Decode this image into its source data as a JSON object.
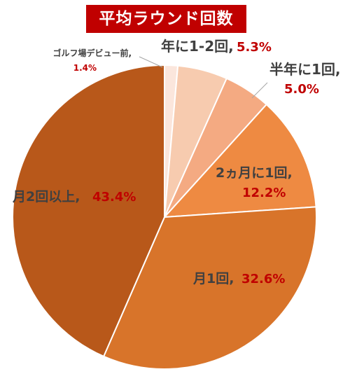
{
  "colors": {
    "title_bg": "#c00000",
    "title_text": "#ffffff",
    "label_text": "#404040",
    "percent_text": "#c00000",
    "leader_line": "#a6a6a6"
  },
  "chart_data": {
    "type": "pie",
    "title": "平均ラウンド回数",
    "start_angle_deg": 0,
    "direction": "clockwise",
    "slices": [
      {
        "label": "ゴルフ場デビュー前,",
        "percent_label": "1.4%",
        "value": 1.4,
        "color": "#fbe6dc"
      },
      {
        "label": "年に1-2回,",
        "percent_label": "5.3%",
        "value": 5.3,
        "color": "#f7cbaf"
      },
      {
        "label": "半年に1回,",
        "percent_label": "5.0%",
        "value": 5.0,
        "color": "#f4aa82"
      },
      {
        "label": "2ヵ月に1回,",
        "percent_label": "12.2%",
        "value": 12.2,
        "color": "#ee8a42"
      },
      {
        "label": "月1回,",
        "percent_label": "32.6%",
        "value": 32.6,
        "color": "#d8742a"
      },
      {
        "label": "月2回以上,",
        "percent_label": "43.4%",
        "value": 43.4,
        "color": "#b8581a"
      }
    ]
  }
}
